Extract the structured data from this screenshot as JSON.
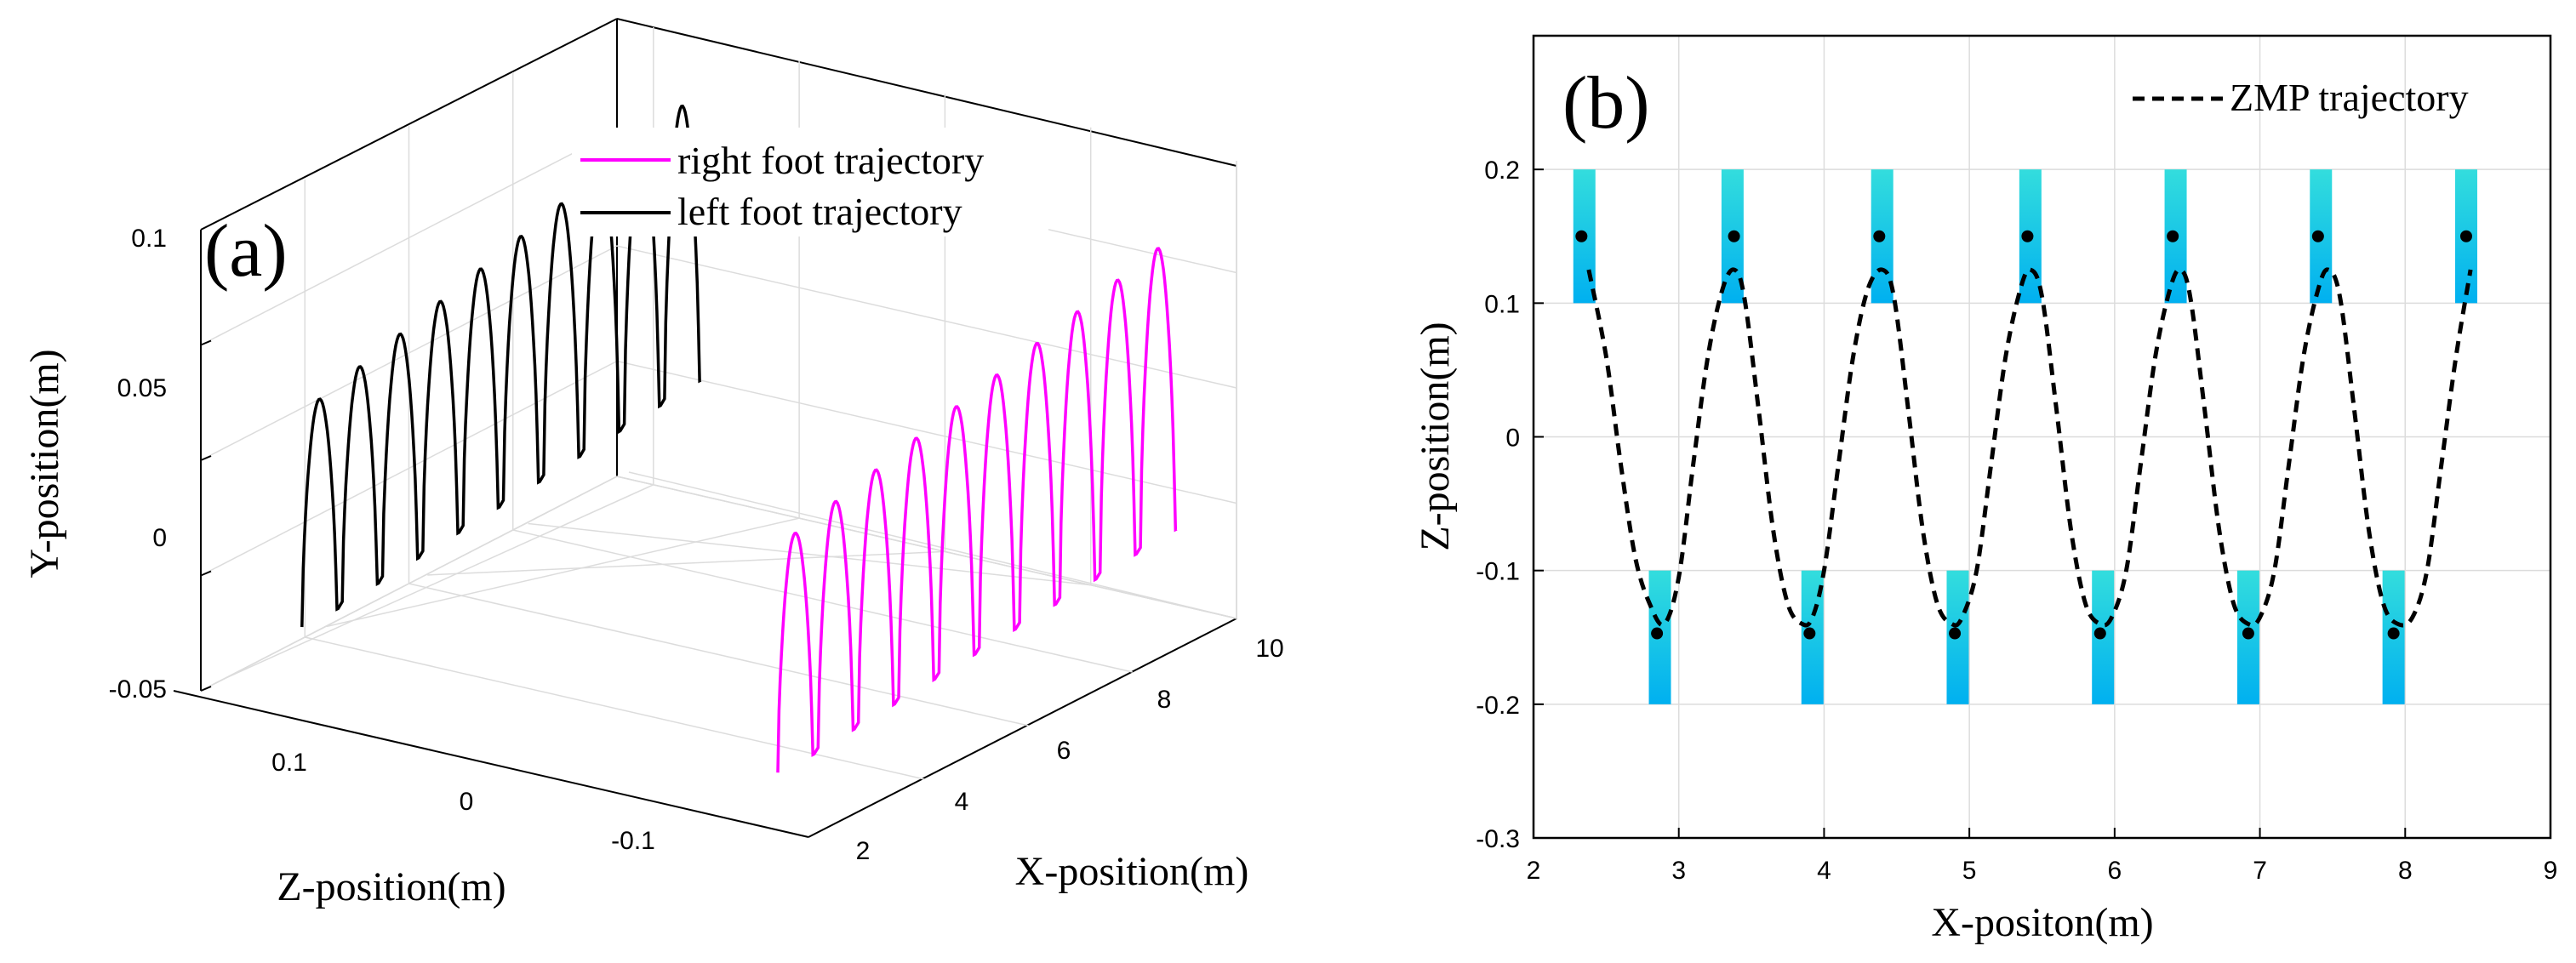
{
  "chart_data": [
    {
      "panel": "(a)",
      "type": "line",
      "projection": "3d",
      "xlabel": "X-position(m)",
      "ylabel": "Y-position(m)",
      "zlabel": "Z-position(m)",
      "x_ticks": [
        "2",
        "4",
        "6",
        "8",
        "10"
      ],
      "y_ticks": [
        "-0.05",
        "0",
        "0.05",
        "0.1"
      ],
      "z_ticks": [
        "0.1",
        "0",
        "-0.1"
      ],
      "x_range": [
        1.5,
        10
      ],
      "y_range": [
        -0.05,
        0.15
      ],
      "z_range": [
        -0.2,
        0.2
      ],
      "grid": true,
      "legend_position": "top-center",
      "series": [
        {
          "name": "right foot trajectory",
          "color": "#ff00ff",
          "z": -0.15,
          "steps": 10,
          "x_start": 2.4,
          "x_step": 0.8,
          "y_min": -0.04,
          "y_max": 0.06,
          "y_growth": 0.0048
        },
        {
          "name": "left foot trajectory",
          "color": "#000000",
          "z": 0.15,
          "steps": 10,
          "x_start": 2.0,
          "x_step": 0.8,
          "y_min": -0.02,
          "y_max": 0.075,
          "y_growth": 0.0052
        }
      ]
    },
    {
      "panel": "(b)",
      "type": "line",
      "xlabel": "X-positon(m)",
      "ylabel": "Z-position(m)",
      "xlim": [
        2,
        9
      ],
      "ylim": [
        -0.3,
        0.3
      ],
      "x_ticks": [
        "2",
        "3",
        "4",
        "5",
        "6",
        "7",
        "8",
        "9"
      ],
      "y_ticks": [
        "-0.3",
        "-0.2",
        "-0.1",
        "0",
        "0.1",
        "0.2"
      ],
      "grid": true,
      "legend_position": "top-right",
      "footprint_color_top": "#33dddd",
      "footprint_color_bottom": "#00b0f0",
      "footprints": [
        {
          "x": 2.35,
          "z_low": 0.1,
          "z_high": 0.2
        },
        {
          "x": 2.87,
          "z_low": -0.2,
          "z_high": -0.1
        },
        {
          "x": 3.37,
          "z_low": 0.1,
          "z_high": 0.2
        },
        {
          "x": 3.92,
          "z_low": -0.2,
          "z_high": -0.1
        },
        {
          "x": 4.4,
          "z_low": 0.1,
          "z_high": 0.2
        },
        {
          "x": 4.92,
          "z_low": -0.2,
          "z_high": -0.1
        },
        {
          "x": 5.42,
          "z_low": 0.1,
          "z_high": 0.2
        },
        {
          "x": 5.92,
          "z_low": -0.2,
          "z_high": -0.1
        },
        {
          "x": 6.42,
          "z_low": 0.1,
          "z_high": 0.2
        },
        {
          "x": 6.92,
          "z_low": -0.2,
          "z_high": -0.1
        },
        {
          "x": 7.42,
          "z_low": 0.1,
          "z_high": 0.2
        },
        {
          "x": 7.92,
          "z_low": -0.2,
          "z_high": -0.1
        },
        {
          "x": 8.42,
          "z_low": 0.1,
          "z_high": 0.2
        }
      ],
      "zmp_points": [
        {
          "x": 2.33,
          "z": 0.15
        },
        {
          "x": 2.85,
          "z": -0.147
        },
        {
          "x": 3.38,
          "z": 0.15
        },
        {
          "x": 3.9,
          "z": -0.147
        },
        {
          "x": 4.38,
          "z": 0.15
        },
        {
          "x": 4.9,
          "z": -0.147
        },
        {
          "x": 5.4,
          "z": 0.15
        },
        {
          "x": 5.9,
          "z": -0.147
        },
        {
          "x": 6.4,
          "z": 0.15
        },
        {
          "x": 6.92,
          "z": -0.147
        },
        {
          "x": 7.4,
          "z": 0.15
        },
        {
          "x": 7.92,
          "z": -0.147
        },
        {
          "x": 8.42,
          "z": 0.15
        }
      ],
      "series": [
        {
          "name": "ZMP trajectory",
          "style": "dashed",
          "color": "#000000",
          "x": [
            2.38,
            2.5,
            2.6,
            2.7,
            2.8,
            2.9,
            3.0,
            3.1,
            3.2,
            3.3,
            3.38,
            3.45,
            3.55,
            3.65,
            3.75,
            3.85,
            3.92,
            4.0,
            4.1,
            4.2,
            4.3,
            4.4,
            4.48,
            4.58,
            4.68,
            4.78,
            4.88,
            4.95,
            5.05,
            5.15,
            5.25,
            5.35,
            5.42,
            5.5,
            5.6,
            5.7,
            5.8,
            5.9,
            5.98,
            6.08,
            6.18,
            6.28,
            6.38,
            6.45,
            6.52,
            6.62,
            6.72,
            6.82,
            6.92,
            7.0,
            7.1,
            7.2,
            7.3,
            7.4,
            7.47,
            7.55,
            7.65,
            7.75,
            7.85,
            7.95,
            8.05,
            8.15,
            8.25,
            8.35,
            8.45
          ],
          "z": [
            0.125,
            0.06,
            -0.02,
            -0.09,
            -0.125,
            -0.14,
            -0.105,
            -0.02,
            0.06,
            0.11,
            0.125,
            0.105,
            0.02,
            -0.07,
            -0.125,
            -0.14,
            -0.135,
            -0.1,
            -0.02,
            0.06,
            0.11,
            0.125,
            0.105,
            0.02,
            -0.07,
            -0.125,
            -0.14,
            -0.135,
            -0.1,
            -0.02,
            0.06,
            0.11,
            0.125,
            0.105,
            0.02,
            -0.07,
            -0.125,
            -0.14,
            -0.135,
            -0.1,
            -0.02,
            0.06,
            0.11,
            0.125,
            0.105,
            0.02,
            -0.07,
            -0.125,
            -0.14,
            -0.135,
            -0.1,
            -0.02,
            0.06,
            0.11,
            0.125,
            0.105,
            0.02,
            -0.07,
            -0.125,
            -0.14,
            -0.135,
            -0.1,
            -0.02,
            0.06,
            0.125
          ]
        }
      ]
    }
  ]
}
